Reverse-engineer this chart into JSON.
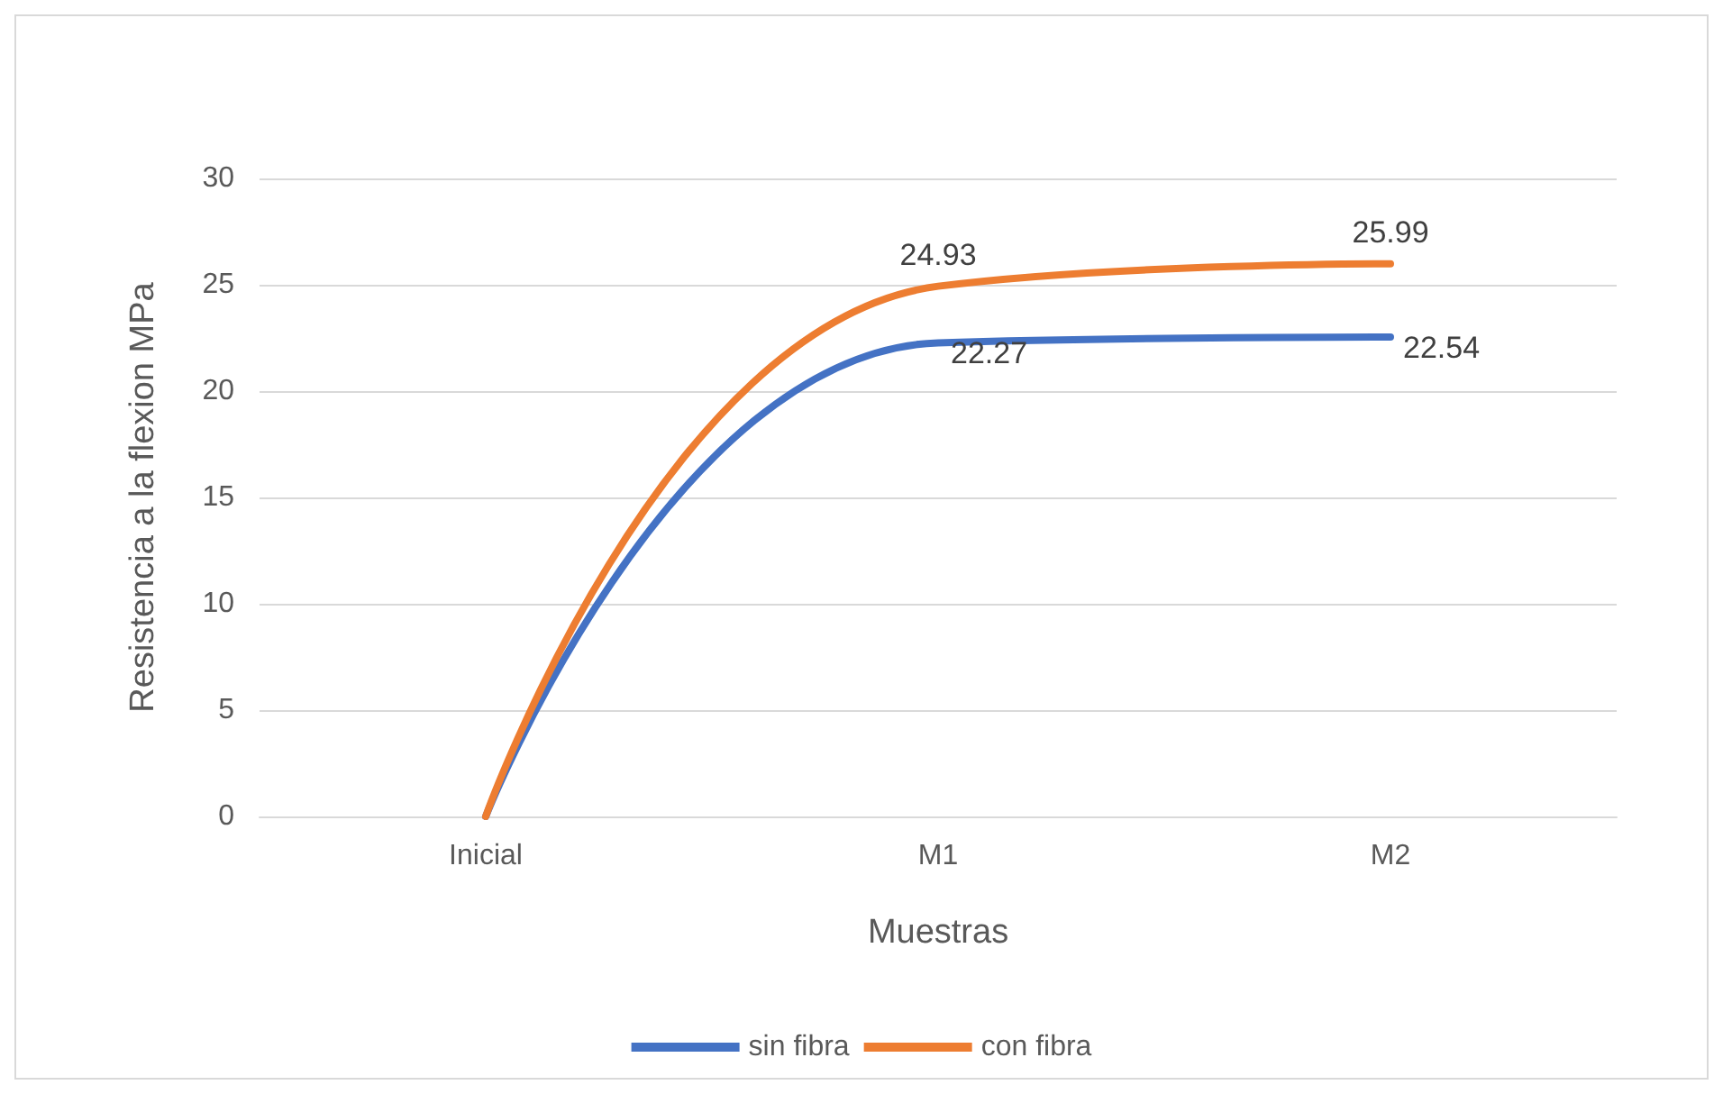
{
  "chart_data": {
    "type": "line",
    "xlabel": "Muestras",
    "ylabel": "Resistencia a la flexion MPa",
    "categories": [
      "Inicial",
      "M1",
      "M2"
    ],
    "series": [
      {
        "name": "sin fibra",
        "color": "#4472c4",
        "values": [
          0,
          22.27,
          22.54
        ],
        "value_labels": [
          null,
          "22.27",
          "22.54"
        ]
      },
      {
        "name": "con fibra",
        "color": "#ed7d31",
        "values": [
          0,
          24.93,
          25.99
        ],
        "value_labels": [
          null,
          "24.93",
          "25.99"
        ]
      }
    ],
    "ylim": [
      0,
      30
    ],
    "yticks": [
      0,
      5,
      10,
      15,
      20,
      25,
      30
    ],
    "grid": "y",
    "legend": "bottom",
    "marker": "none",
    "line_style": "solid"
  }
}
